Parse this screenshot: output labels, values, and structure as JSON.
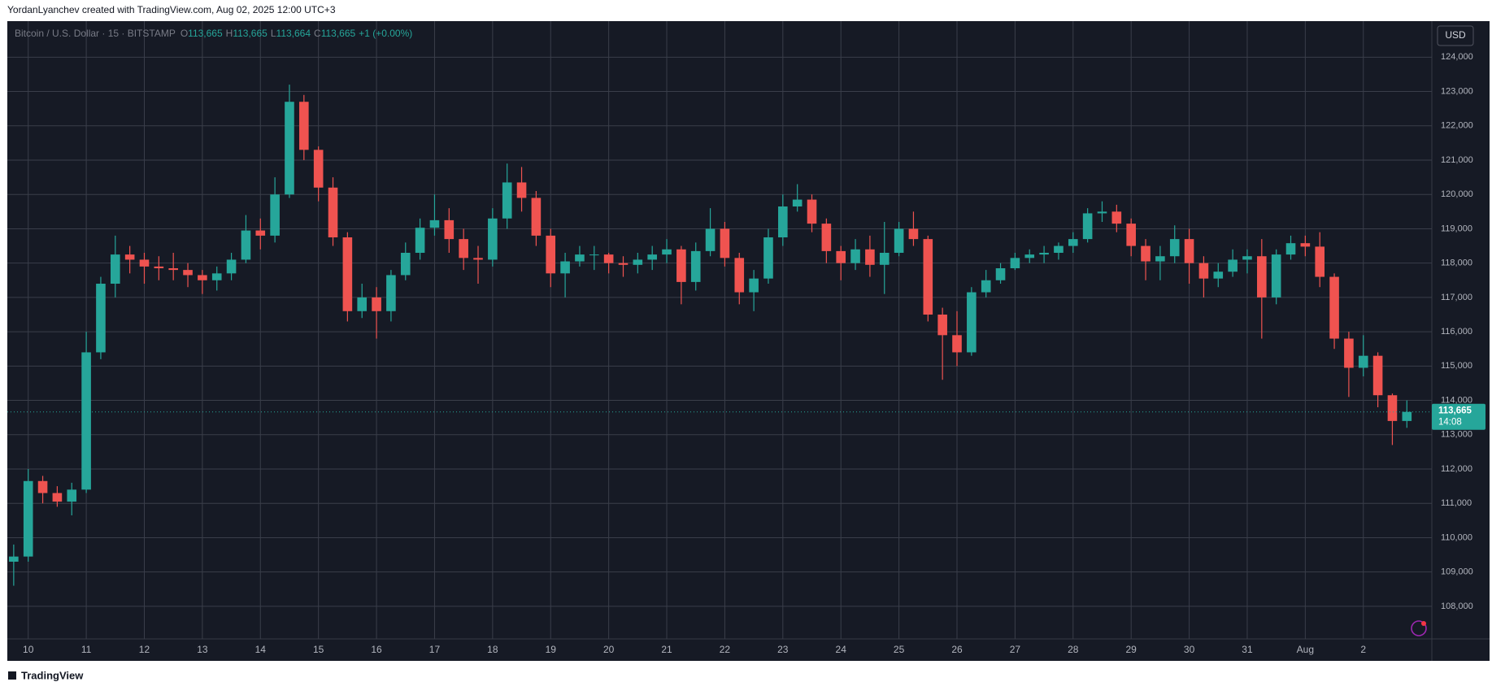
{
  "header": "YordanLyanchev created with TradingView.com, Aug 02, 2025 12:00 UTC+3",
  "legend": {
    "symbol": "Bitcoin / U.S. Dollar · 15 · BITSTAMP",
    "ohlc": [
      {
        "key": "O",
        "value": "113,665"
      },
      {
        "key": "H",
        "value": "113,665"
      },
      {
        "key": "L",
        "value": "113,664"
      },
      {
        "key": "C",
        "value": "113,665"
      }
    ],
    "change": "+1 (+0.00%)"
  },
  "currency": "USD",
  "footer": "TradingView",
  "chart_data": {
    "type": "candlestick",
    "up_color": "#26a69a",
    "down_color": "#ef5350",
    "grid": true,
    "x": [
      9.75,
      10,
      10.25,
      10.5,
      10.75,
      11,
      11.25,
      11.5,
      11.75,
      12,
      12.25,
      12.5,
      12.75,
      13,
      13.25,
      13.5,
      13.75,
      14,
      14.25,
      14.5,
      14.75,
      15,
      15.25,
      15.5,
      15.75,
      16,
      16.25,
      16.5,
      16.75,
      17,
      17.25,
      17.5,
      17.75,
      18,
      18.25,
      18.5,
      18.75,
      19,
      19.25,
      19.5,
      19.75,
      20,
      20.25,
      20.5,
      20.75,
      21,
      21.25,
      21.5,
      21.75,
      22,
      22.25,
      22.5,
      22.75,
      23,
      23.25,
      23.5,
      23.75,
      24,
      24.25,
      24.5,
      24.75,
      25,
      25.25,
      25.5,
      25.75,
      26,
      26.25,
      26.5,
      26.75,
      27,
      27.25,
      27.5,
      27.75,
      28,
      28.25,
      28.5,
      28.75,
      29,
      29.25,
      29.5,
      29.75,
      30,
      30.25,
      30.5,
      30.75,
      31,
      31.25,
      31.5,
      31.75,
      32,
      32.25,
      32.5,
      32.75,
      33,
      33.25,
      33.5,
      33.75
    ],
    "open": [
      109300,
      109450,
      111650,
      111300,
      111050,
      111400,
      115400,
      117400,
      118250,
      118100,
      117900,
      117850,
      117800,
      117650,
      117500,
      117700,
      118100,
      118950,
      118800,
      120000,
      122700,
      121300,
      120200,
      118750,
      116600,
      117000,
      116600,
      117650,
      118300,
      119030,
      119250,
      118700,
      118150,
      118100,
      119300,
      120350,
      119900,
      118800,
      117700,
      118050,
      118250,
      118250,
      118000,
      117950,
      118100,
      118250,
      118400,
      117450,
      118350,
      119000,
      118150,
      117150,
      117550,
      118750,
      119650,
      119850,
      119150,
      118350,
      118000,
      118400,
      117950,
      118300,
      119000,
      118700,
      116500,
      115900,
      115400,
      117150,
      117500,
      117850,
      118150,
      118250,
      118300,
      118500,
      118700,
      119450,
      119500,
      119150,
      118500,
      118050,
      118200,
      118700,
      118000,
      117550,
      117750,
      118100,
      118200,
      117000,
      118250,
      118580,
      118480,
      117600,
      115800,
      114950,
      115300,
      114150,
      113400
    ],
    "high": [
      109800,
      112000,
      111800,
      111500,
      111600,
      116000,
      117600,
      118800,
      118500,
      118300,
      118200,
      118300,
      118000,
      117800,
      117900,
      118300,
      119400,
      119300,
      120500,
      123200,
      122900,
      121400,
      120500,
      118900,
      117400,
      117300,
      117800,
      118600,
      119300,
      120000,
      119600,
      119000,
      118500,
      119600,
      120900,
      120800,
      120100,
      119000,
      118300,
      118500,
      118500,
      118300,
      118200,
      118300,
      118500,
      118700,
      118500,
      118600,
      119600,
      119200,
      118300,
      117800,
      119000,
      120000,
      120300,
      120000,
      119300,
      118500,
      118700,
      118800,
      119200,
      119200,
      119500,
      118800,
      116700,
      116600,
      117300,
      117800,
      118000,
      118300,
      118400,
      118500,
      118600,
      118900,
      119600,
      119800,
      119700,
      119300,
      118700,
      118500,
      119100,
      119000,
      118200,
      118000,
      118400,
      118400,
      118700,
      118400,
      118800,
      118800,
      118900,
      117700,
      116000,
      115900,
      115400,
      114200,
      114000
    ],
    "low": [
      108600,
      109300,
      111000,
      110900,
      110650,
      111300,
      115200,
      117000,
      117700,
      117400,
      117500,
      117500,
      117300,
      117100,
      117200,
      117500,
      118000,
      118400,
      118600,
      119900,
      121000,
      119800,
      118500,
      116300,
      116400,
      115800,
      116300,
      117500,
      118100,
      118800,
      118300,
      117800,
      117400,
      117900,
      119000,
      119500,
      118500,
      117300,
      117000,
      117900,
      117800,
      117700,
      117600,
      117700,
      117800,
      118000,
      116800,
      117200,
      118200,
      117900,
      116800,
      116600,
      117400,
      118500,
      119500,
      118900,
      118000,
      117500,
      117800,
      117600,
      117100,
      118200,
      118500,
      116300,
      114600,
      115000,
      115300,
      117000,
      117400,
      117800,
      118000,
      118000,
      118100,
      118300,
      118600,
      119200,
      118900,
      118200,
      117500,
      117500,
      118000,
      117400,
      117000,
      117300,
      117600,
      117700,
      115800,
      116800,
      118100,
      118200,
      117300,
      115500,
      114100,
      114700,
      113800,
      112700,
      113200
    ],
    "close": [
      109450,
      111650,
      111300,
      111050,
      111400,
      115400,
      117400,
      118250,
      118100,
      117900,
      117850,
      117800,
      117650,
      117500,
      117700,
      118100,
      118950,
      118800,
      120000,
      122700,
      121300,
      120200,
      118750,
      116600,
      117000,
      116600,
      117650,
      118300,
      119030,
      119250,
      118700,
      118150,
      118100,
      119300,
      120350,
      119900,
      118800,
      117700,
      118050,
      118250,
      118250,
      118000,
      117950,
      118100,
      118250,
      118400,
      117450,
      118350,
      119000,
      118150,
      117150,
      117550,
      118750,
      119650,
      119850,
      119150,
      118350,
      118000,
      118400,
      117950,
      118300,
      119000,
      118700,
      116500,
      115900,
      115400,
      117150,
      117500,
      117850,
      118150,
      118250,
      118300,
      118500,
      118700,
      119450,
      119500,
      119150,
      118500,
      118050,
      118200,
      118700,
      118000,
      117550,
      117750,
      118100,
      118200,
      117000,
      118250,
      118580,
      118480,
      117600,
      115800,
      114950,
      115300,
      114150,
      113400,
      113665
    ],
    "xlim": [
      9.64,
      34.18
    ],
    "xticks": [
      10,
      11,
      12,
      13,
      14,
      15,
      16,
      17,
      18,
      19,
      20,
      21,
      22,
      23,
      24,
      25,
      26,
      27,
      28,
      29,
      30,
      31,
      {
        "value": 32,
        "label": "Aug"
      },
      {
        "value": 33,
        "label": "2"
      }
    ],
    "ylim": [
      107050,
      125050
    ],
    "yticks": [
      {
        "value": 108000,
        "label": "108,000"
      },
      {
        "value": 109000,
        "label": "109,000"
      },
      {
        "value": 110000,
        "label": "110,000"
      },
      {
        "value": 111000,
        "label": "111,000"
      },
      {
        "value": 112000,
        "label": "112,000"
      },
      {
        "value": 113000,
        "label": "113,000"
      },
      {
        "value": 114000,
        "label": "114,000"
      },
      {
        "value": 115000,
        "label": "115,000"
      },
      {
        "value": 116000,
        "label": "116,000"
      },
      {
        "value": 117000,
        "label": "117,000"
      },
      {
        "value": 118000,
        "label": "118,000"
      },
      {
        "value": 119000,
        "label": "119,000"
      },
      {
        "value": 120000,
        "label": "120,000"
      },
      {
        "value": 121000,
        "label": "121,000"
      },
      {
        "value": 122000,
        "label": "122,000"
      },
      {
        "value": 123000,
        "label": "123,000"
      },
      {
        "value": 124000,
        "label": "124,000"
      }
    ],
    "last_price": {
      "value": 113665,
      "label": "113,665",
      "countdown": "14:08"
    }
  }
}
